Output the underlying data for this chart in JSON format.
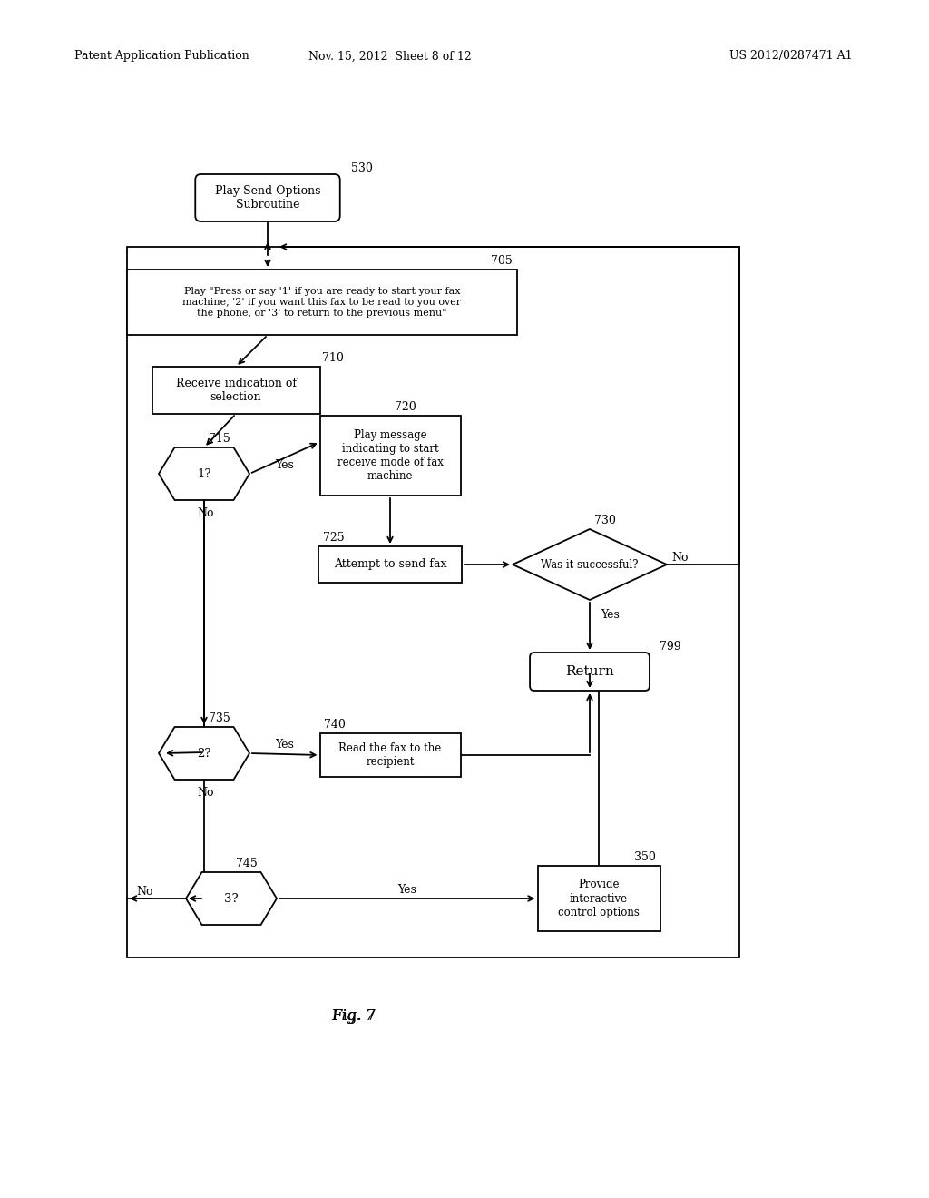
{
  "header_left": "Patent Application Publication",
  "header_mid": "Nov. 15, 2012  Sheet 8 of 12",
  "header_right": "US 2012/0287471 A1",
  "fig_label": "Fig. 7",
  "bg_color": "#ffffff",
  "line_color": "#000000"
}
